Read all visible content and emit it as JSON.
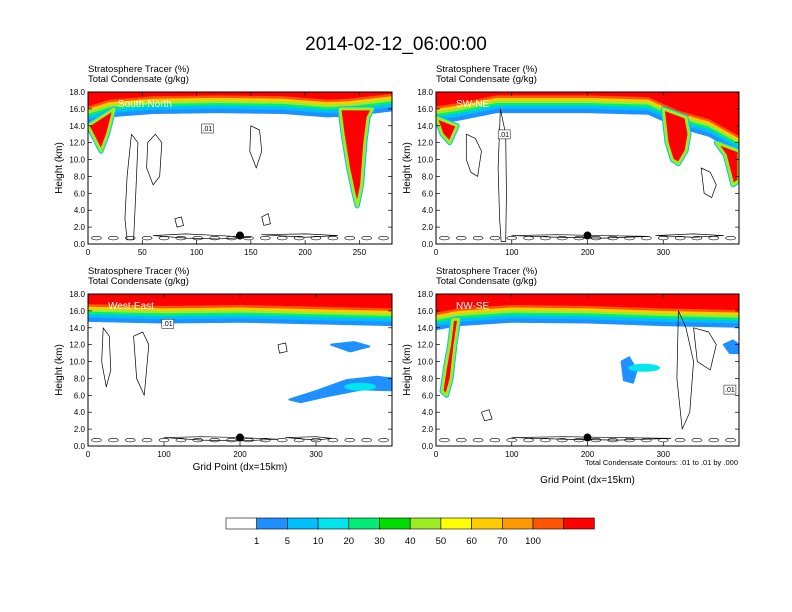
{
  "figure": {
    "title": "2014-02-12_06:00:00",
    "footnote": "Total Condensate Contours: .01 to .01 by .000"
  },
  "chart_data": [
    {
      "type": "heatmap",
      "label": "South-North",
      "header_line1": "Stratosphere Tracer   (%)",
      "header_line2": "Total Condensate   (g/kg)",
      "ylabel": "Height (km)",
      "xlabel": "",
      "xlim": [
        0,
        280
      ],
      "xticks": [
        0,
        50,
        100,
        150,
        200,
        250
      ],
      "ylim": [
        0,
        18
      ],
      "yticks": [
        "0.0",
        "2.0",
        "4.0",
        "6.0",
        "8.0",
        "10.0",
        "12.0",
        "14.0",
        "16.0",
        "18.0"
      ],
      "contour_label": ".01",
      "contour_label_xy": [
        110,
        13.5
      ],
      "marker_xy": [
        140,
        1.0
      ],
      "tracer_base_km": [
        [
          0,
          15.0
        ],
        [
          20,
          15.8
        ],
        [
          60,
          16.2
        ],
        [
          120,
          16.3
        ],
        [
          180,
          16.2
        ],
        [
          220,
          15.8
        ],
        [
          240,
          15.9
        ],
        [
          280,
          16.5
        ]
      ],
      "intrusions": [
        {
          "name": "tropopause fold",
          "path": [
            [
              232,
              16
            ],
            [
              235,
              13
            ],
            [
              240,
              9
            ],
            [
              245,
              6
            ],
            [
              248,
              4.5
            ],
            [
              252,
              7
            ],
            [
              255,
              12
            ],
            [
              258,
              15
            ],
            [
              262,
              16
            ]
          ]
        },
        {
          "name": "western fold",
          "path": [
            [
              0,
              14
            ],
            [
              6,
              12.5
            ],
            [
              12,
              11
            ],
            [
              18,
              13
            ],
            [
              24,
              16
            ]
          ]
        }
      ],
      "condensate_blobs": [
        [
          [
            40,
            13
          ],
          [
            36,
            8
          ],
          [
            34,
            3
          ],
          [
            36,
            0.5
          ],
          [
            42,
            0.5
          ],
          [
            44,
            6
          ],
          [
            46,
            12
          ]
        ],
        [
          [
            55,
            12
          ],
          [
            62,
            13
          ],
          [
            68,
            12
          ],
          [
            66,
            8
          ],
          [
            60,
            7
          ],
          [
            54,
            9
          ]
        ],
        [
          [
            150,
            14
          ],
          [
            158,
            13.5
          ],
          [
            160,
            11
          ],
          [
            155,
            9
          ],
          [
            149,
            11
          ]
        ],
        [
          [
            60,
            1.0
          ],
          [
            90,
            1.2
          ],
          [
            120,
            1.0
          ],
          [
            150,
            0.8
          ],
          [
            120,
            0.6
          ],
          [
            90,
            0.7
          ]
        ],
        [
          [
            160,
            1.1
          ],
          [
            200,
            1.2
          ],
          [
            230,
            1.0
          ],
          [
            200,
            0.8
          ]
        ],
        [
          [
            80,
            3.0
          ],
          [
            86,
            3.2
          ],
          [
            88,
            2.2
          ],
          [
            82,
            2.0
          ]
        ],
        [
          [
            160,
            3.2
          ],
          [
            166,
            3.6
          ],
          [
            168,
            2.4
          ],
          [
            162,
            2.2
          ]
        ]
      ]
    },
    {
      "type": "heatmap",
      "label": "SW-NE",
      "header_line1": "Stratosphere Tracer   (%)",
      "header_line2": "Total Condensate   (g/kg)",
      "ylabel": "Height (km)",
      "xlabel": "",
      "xlim": [
        0,
        400
      ],
      "xticks": [
        0,
        100,
        200,
        300
      ],
      "ylim": [
        0,
        18
      ],
      "yticks": [
        "0.0",
        "2.0",
        "4.0",
        "6.0",
        "8.0",
        "10.0",
        "12.0",
        "14.0",
        "16.0",
        "18.0"
      ],
      "contour_label": ".01",
      "contour_label_xy": [
        90,
        12.8
      ],
      "marker_xy": [
        200,
        1.0
      ],
      "tracer_base_km": [
        [
          0,
          15.0
        ],
        [
          30,
          15.4
        ],
        [
          80,
          16.3
        ],
        [
          200,
          16.3
        ],
        [
          280,
          16.1
        ],
        [
          320,
          14.5
        ],
        [
          360,
          13.5
        ],
        [
          400,
          11.5
        ]
      ],
      "intrusions": [
        {
          "name": "fold",
          "path": [
            [
              300,
              16
            ],
            [
              305,
              12
            ],
            [
              312,
              10
            ],
            [
              320,
              9.5
            ],
            [
              330,
              11
            ],
            [
              334,
              13
            ],
            [
              330,
              15
            ]
          ]
        },
        {
          "name": "western fold",
          "path": [
            [
              0,
              15
            ],
            [
              8,
              13
            ],
            [
              18,
              12
            ],
            [
              28,
              14
            ]
          ]
        },
        {
          "name": "eastern tongue",
          "path": [
            [
              370,
              12
            ],
            [
              382,
              10.5
            ],
            [
              392,
              7
            ],
            [
              400,
              7.5
            ],
            [
              400,
              11
            ]
          ]
        }
      ],
      "condensate_blobs": [
        [
          [
            85,
            16
          ],
          [
            82,
            9
          ],
          [
            84,
            3
          ],
          [
            86,
            0.3
          ],
          [
            92,
            0.3
          ],
          [
            93,
            6
          ],
          [
            92,
            13
          ]
        ],
        [
          [
            40,
            13
          ],
          [
            52,
            12.5
          ],
          [
            60,
            11
          ],
          [
            55,
            8
          ],
          [
            46,
            8.5
          ],
          [
            40,
            10
          ]
        ],
        [
          [
            350,
            9
          ],
          [
            362,
            8.5
          ],
          [
            370,
            7
          ],
          [
            364,
            5.5
          ],
          [
            354,
            6
          ]
        ],
        [
          [
            100,
            1.0
          ],
          [
            160,
            1.1
          ],
          [
            220,
            1.0
          ],
          [
            280,
            0.9
          ],
          [
            220,
            0.7
          ],
          [
            160,
            0.8
          ]
        ],
        [
          [
            290,
            1.0
          ],
          [
            340,
            1.2
          ],
          [
            380,
            1.0
          ],
          [
            340,
            0.8
          ]
        ]
      ]
    },
    {
      "type": "heatmap",
      "label": "West-East",
      "header_line1": "Stratosphere Tracer   (%)",
      "header_line2": "Total Condensate   (g/kg)",
      "ylabel": "Height (km)",
      "xlabel": "Grid Point (dx=15km)",
      "xlim": [
        0,
        400
      ],
      "xticks": [
        0,
        100,
        200,
        300
      ],
      "ylim": [
        0,
        18
      ],
      "yticks": [
        "0.0",
        "2.0",
        "4.0",
        "6.0",
        "8.0",
        "10.0",
        "12.0",
        "14.0",
        "16.0",
        "18.0"
      ],
      "contour_label": ".01",
      "contour_label_xy": [
        105,
        14.3
      ],
      "marker_xy": [
        200,
        1.0
      ],
      "tracer_base_km": [
        [
          0,
          15.5
        ],
        [
          100,
          15.3
        ],
        [
          200,
          15.4
        ],
        [
          300,
          15.2
        ],
        [
          400,
          15.0
        ]
      ],
      "intrusions": [],
      "blue_layers": [
        [
          [
            265,
            5.5
          ],
          [
            300,
            6.5
          ],
          [
            340,
            7.8
          ],
          [
            380,
            8.2
          ],
          [
            400,
            8.0
          ],
          [
            400,
            6.6
          ],
          [
            360,
            6.7
          ],
          [
            320,
            6.0
          ],
          [
            280,
            5.2
          ]
        ],
        [
          [
            320,
            12.0
          ],
          [
            350,
            12.3
          ],
          [
            370,
            11.8
          ],
          [
            345,
            11.2
          ]
        ]
      ],
      "condensate_blobs": [
        [
          [
            20,
            14
          ],
          [
            28,
            13
          ],
          [
            30,
            9
          ],
          [
            24,
            7
          ],
          [
            18,
            10
          ]
        ],
        [
          [
            60,
            13
          ],
          [
            72,
            13.5
          ],
          [
            80,
            12
          ],
          [
            74,
            6
          ],
          [
            64,
            8
          ]
        ],
        [
          [
            250,
            12
          ],
          [
            260,
            12.2
          ],
          [
            262,
            11.2
          ],
          [
            252,
            11
          ]
        ],
        [
          [
            100,
            1.0
          ],
          [
            150,
            1.1
          ],
          [
            200,
            1.0
          ],
          [
            250,
            0.8
          ],
          [
            200,
            0.6
          ],
          [
            150,
            0.7
          ]
        ],
        [
          [
            260,
            1.0
          ],
          [
            300,
            1.1
          ],
          [
            320,
            0.9
          ],
          [
            300,
            0.7
          ]
        ]
      ]
    },
    {
      "type": "heatmap",
      "label": "NW-SE",
      "header_line1": "Stratosphere Tracer   (%)",
      "header_line2": "Total Condensate   (g/kg)",
      "ylabel": "Height (km)",
      "xlabel": "Grid Point (dx=15km)",
      "xlim": [
        0,
        400
      ],
      "xticks": [
        0,
        100,
        200,
        300
      ],
      "ylim": [
        0,
        18
      ],
      "yticks": [
        "0.0",
        "2.0",
        "4.0",
        "6.0",
        "8.0",
        "10.0",
        "12.0",
        "14.0",
        "16.0",
        "18.0"
      ],
      "contour_label": ".01",
      "contour_label_xy": [
        388,
        6.5
      ],
      "marker_xy": [
        200,
        1.0
      ],
      "tracer_base_km": [
        [
          0,
          14.5
        ],
        [
          30,
          15.0
        ],
        [
          100,
          15.4
        ],
        [
          200,
          15.3
        ],
        [
          300,
          15.0
        ],
        [
          400,
          14.8
        ]
      ],
      "intrusions": [
        {
          "name": "western tongue",
          "path": [
            [
              30,
              15
            ],
            [
              25,
              12
            ],
            [
              20,
              8
            ],
            [
              14,
              6
            ],
            [
              8,
              6.5
            ],
            [
              12,
              9
            ],
            [
              18,
              12
            ],
            [
              22,
              15
            ]
          ]
        }
      ],
      "blue_layers": [
        [
          [
            245,
            10
          ],
          [
            255,
            10.5
          ],
          [
            265,
            9
          ],
          [
            260,
            7.5
          ],
          [
            248,
            7.8
          ]
        ],
        [
          [
            380,
            12
          ],
          [
            392,
            12.5
          ],
          [
            400,
            12
          ],
          [
            400,
            11
          ],
          [
            388,
            11
          ]
        ]
      ],
      "condensate_blobs": [
        [
          [
            320,
            16
          ],
          [
            330,
            14
          ],
          [
            340,
            10
          ],
          [
            335,
            4
          ],
          [
            325,
            2
          ],
          [
            318,
            8
          ]
        ],
        [
          [
            340,
            14
          ],
          [
            360,
            13.5
          ],
          [
            370,
            12
          ],
          [
            362,
            9
          ],
          [
            345,
            10
          ]
        ],
        [
          [
            100,
            1.0
          ],
          [
            170,
            1.1
          ],
          [
            240,
            1.0
          ],
          [
            310,
            0.9
          ],
          [
            240,
            0.7
          ],
          [
            170,
            0.8
          ]
        ],
        [
          [
            60,
            4.0
          ],
          [
            70,
            4.3
          ],
          [
            74,
            3.2
          ],
          [
            64,
            3.0
          ]
        ]
      ]
    }
  ],
  "colorbar": {
    "colors": [
      "#ffffff",
      "#1e90ff",
      "#00bfff",
      "#00e5ee",
      "#00ee76",
      "#00dd00",
      "#9aee22",
      "#ffff00",
      "#ffcc00",
      "#ff9900",
      "#ff5500",
      "#ff0000"
    ],
    "labels": [
      "1",
      "5",
      "10",
      "20",
      "30",
      "40",
      "50",
      "60",
      "70",
      "100"
    ]
  },
  "tracer_levels": [
    1,
    5,
    10,
    20,
    30,
    40,
    50,
    60,
    70,
    100
  ]
}
